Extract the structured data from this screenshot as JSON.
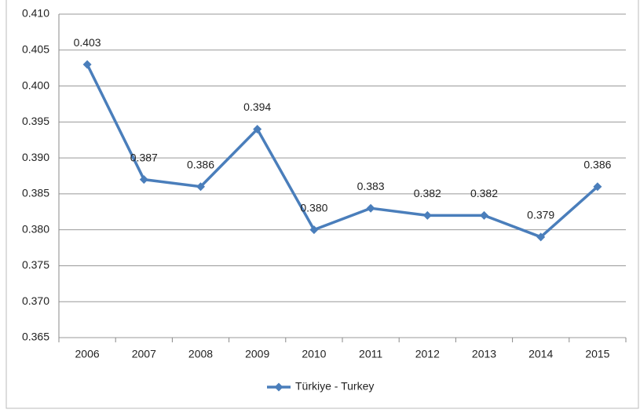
{
  "chart_data": {
    "type": "line",
    "categories": [
      "2006",
      "2007",
      "2008",
      "2009",
      "2010",
      "2011",
      "2012",
      "2013",
      "2014",
      "2015"
    ],
    "series": [
      {
        "name": "Türkiye - Turkey",
        "color": "#4a7ebb",
        "values": [
          0.403,
          0.387,
          0.386,
          0.394,
          0.38,
          0.383,
          0.382,
          0.382,
          0.379,
          0.386
        ],
        "value_labels": [
          "0.403",
          "0.387",
          "0.386",
          "0.394",
          "0.380",
          "0.383",
          "0.382",
          "0.382",
          "0.379",
          "0.386"
        ]
      }
    ],
    "ylim": [
      0.365,
      0.41
    ],
    "yticks": [
      0.365,
      {
        "value": 0.37,
        "label": "0.370"
      },
      0.375,
      {
        "value": 0.38,
        "label": "0.380"
      },
      0.385,
      {
        "value": 0.39,
        "label": "0.390"
      },
      0.395,
      {
        "value": 0.4,
        "label": "0.400"
      },
      0.405,
      {
        "value": 0.41,
        "label": "0.410"
      }
    ],
    "grid": true,
    "legend": "bottom"
  }
}
